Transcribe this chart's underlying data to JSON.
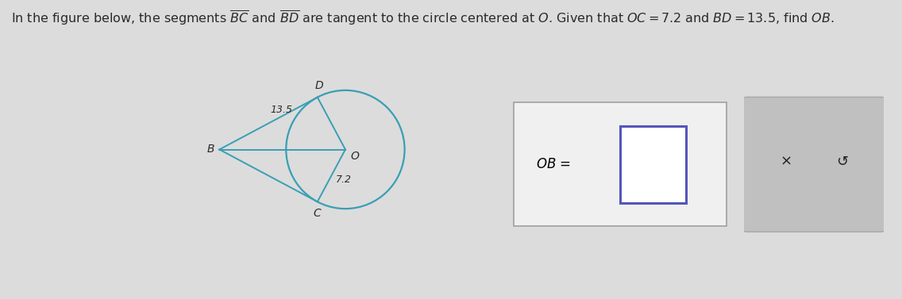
{
  "OC": 7.2,
  "BD": 13.5,
  "circle_color": "#3a9eb5",
  "line_color": "#3a9eb5",
  "text_color": "#2a2a2a",
  "bg_color": "#dcdcdc",
  "figsize": [
    11.36,
    3.77
  ],
  "dpi": 100,
  "label_13_5": "13.5",
  "label_7_2": "7.2",
  "label_B": "B",
  "label_D": "D",
  "label_O": "O",
  "label_C": "C",
  "x_label": "×",
  "undo_label": "↺"
}
